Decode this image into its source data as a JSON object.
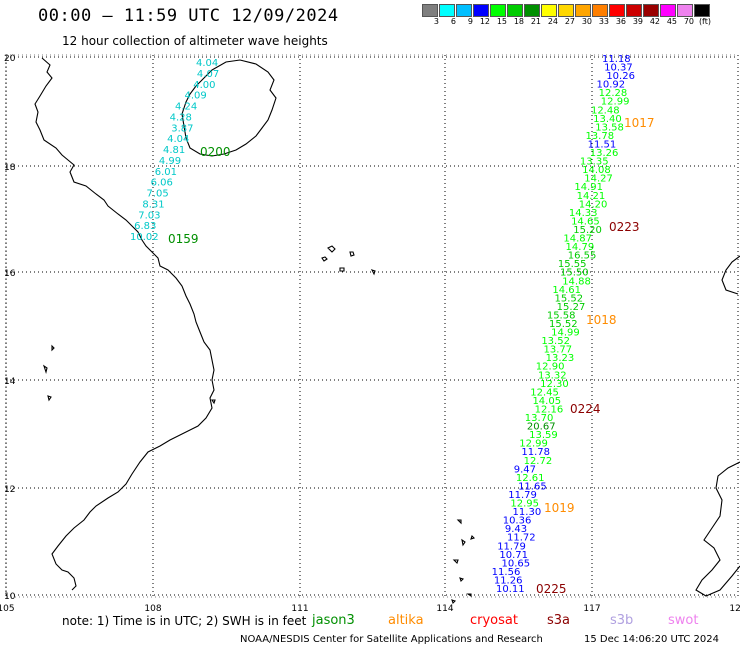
{
  "title": "00:00 – 11:59 UTC 12/09/2024",
  "subtitle": "12 hour collection of altimeter wave heights",
  "colorbar": {
    "colors": [
      "#7f7f7f",
      "#00ffff",
      "#00bfff",
      "#0000ff",
      "#00ff00",
      "#00cc00",
      "#008f00",
      "#ffff00",
      "#ffd700",
      "#ffa500",
      "#ff7f00",
      "#ff0000",
      "#cc0000",
      "#990000",
      "#ff00ff",
      "#ee82ee",
      "#000000"
    ],
    "ticks": [
      "3",
      "6",
      "9",
      "12",
      "15",
      "18",
      "21",
      "24",
      "27",
      "30",
      "33",
      "36",
      "39",
      "42",
      "45",
      "70",
      "(ft)"
    ]
  },
  "axes": {
    "lon_ticks": [
      "105",
      "108",
      "111",
      "114",
      "117",
      "120"
    ],
    "lat_ticks": [
      "10",
      "12",
      "14",
      "16",
      "18",
      "20"
    ]
  },
  "tracks": {
    "west": {
      "color": "#00c8c8",
      "values": [
        "4.04",
        "4.07",
        "4.00",
        "4.09",
        "4.24",
        "4.28",
        "3.87",
        "4.04",
        "4.81",
        "4.99",
        "6.01",
        "6.06",
        "7.05",
        "8.31",
        "7.03",
        "6.83",
        "10.02"
      ],
      "time_labels": [
        "0200",
        "0159"
      ],
      "time_color": "#008f00"
    },
    "east": {
      "values": [
        "11.18",
        "10.37",
        "10.26",
        "10.92",
        "12.28",
        "12.99",
        "12.48",
        "13.40",
        "13.58",
        "13.78",
        "11.51",
        "13.26",
        "13.35",
        "14.08",
        "14.27",
        "14.91",
        "14.21",
        "14.20",
        "14.33",
        "14.65",
        "15.20",
        "14.87",
        "14.79",
        "16.55",
        "15.55",
        "15.50",
        "14.88",
        "14.61",
        "15.52",
        "15.27",
        "15.58",
        "15.52",
        "14.99",
        "13.52",
        "13.77",
        "13.23",
        "12.90",
        "13.32",
        "12.30",
        "12.45",
        "14.05",
        "12.16",
        "13.70",
        "20.67",
        "13.59",
        "12.99",
        "11.78",
        "12.72",
        "9.47",
        "12.61",
        "11.65",
        "11.79",
        "12.95",
        "11.30",
        "10.36",
        "9.43",
        "11.72",
        "11.79",
        "10.71",
        "10.65",
        "11.56",
        "11.26",
        "10.11"
      ],
      "time_labels": [
        {
          "text": "1017",
          "color": "#ff8c00"
        },
        {
          "text": "0223",
          "color": "#8b0000"
        },
        {
          "text": "1018",
          "color": "#ff8c00"
        },
        {
          "text": "0224",
          "color": "#8b0000"
        },
        {
          "text": "1019",
          "color": "#ff8c00"
        },
        {
          "text": "0225",
          "color": "#8b0000"
        }
      ]
    }
  },
  "note": "note:  1) Time is in UTC; 2) SWH is in feet",
  "satellites": [
    {
      "name": "jason3",
      "color": "#008f00"
    },
    {
      "name": "altika",
      "color": "#ff8c00"
    },
    {
      "name": "cryosat",
      "color": "#ff0000"
    },
    {
      "name": "s3a",
      "color": "#8b0000"
    },
    {
      "name": "s3b",
      "color": "#b0a0e0"
    },
    {
      "name": "swot",
      "color": "#ee82ee"
    }
  ],
  "credit": "NOAA/NESDIS Center for Satellite Applications and Research",
  "timestamp": "15 Dec 14:06:20 UTC 2024"
}
